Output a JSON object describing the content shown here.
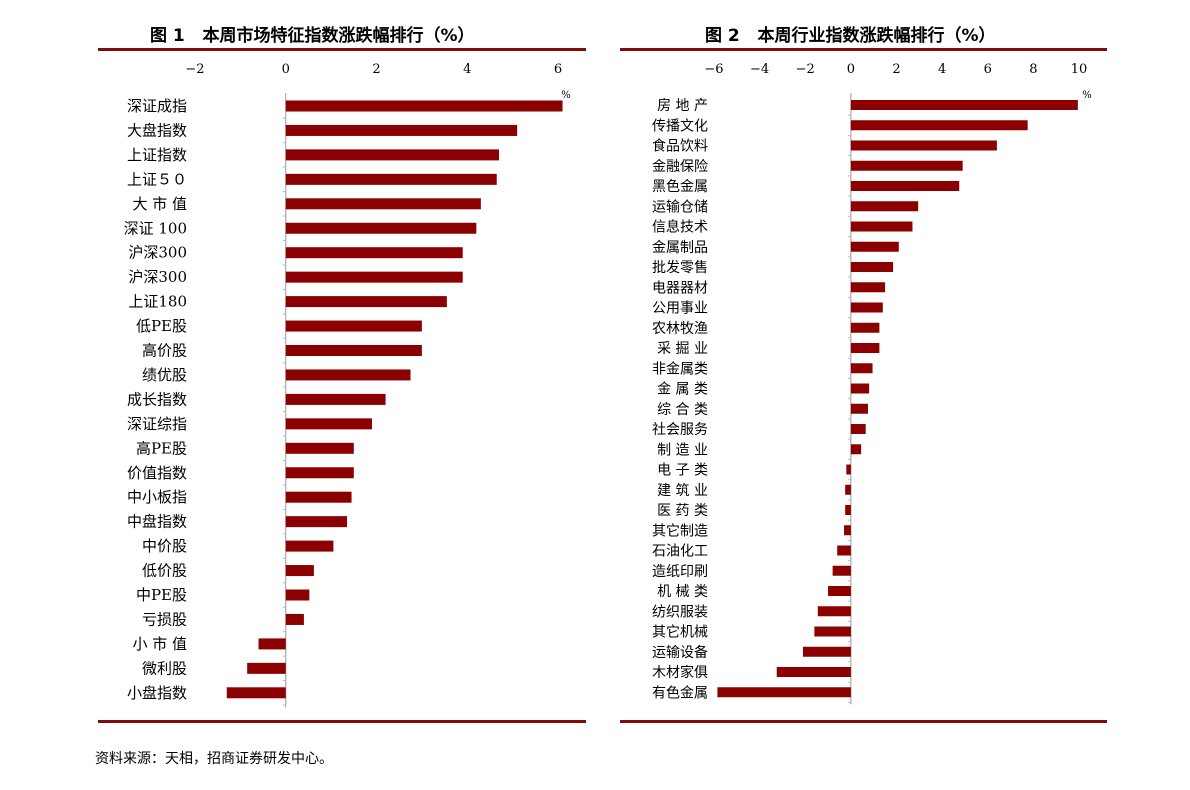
{
  "source_note": "资料来源：天相，招商证券研发中心。",
  "bar_color": "#8b0000",
  "rule_color": "#7f0c0c",
  "chart_data": [
    {
      "type": "bar",
      "orientation": "horizontal",
      "fig_label": "图 1",
      "title": "本周市场特征指数涨跌幅排行（%）",
      "unit": "%",
      "xlim": [
        -2,
        6
      ],
      "xticks": [
        -2,
        0,
        2,
        4,
        6
      ],
      "tick_labels": [
        "−2",
        "0",
        "2",
        "4",
        "6"
      ],
      "categories": [
        "深证成指",
        "大盘指数",
        "上证指数",
        "上证５０",
        "大 市 值",
        "深证 100",
        "沪深300",
        "沪深300",
        "上证180",
        "低PE股",
        "高价股",
        "绩优股",
        "成长指数",
        "深证综指",
        "高PE股",
        "价值指数",
        "中小板指",
        "中盘指数",
        "中价股",
        "低价股",
        "中PE股",
        "亏损股",
        "小 市 值",
        "微利股",
        "小盘指数"
      ],
      "values": [
        6.1,
        5.1,
        4.7,
        4.65,
        4.3,
        4.2,
        3.9,
        3.9,
        3.55,
        3.0,
        3.0,
        2.75,
        2.2,
        1.9,
        1.5,
        1.5,
        1.45,
        1.35,
        1.05,
        0.62,
        0.52,
        0.4,
        -0.6,
        -0.85,
        -1.3
      ]
    },
    {
      "type": "bar",
      "orientation": "horizontal",
      "fig_label": "图 2",
      "title": "本周行业指数涨跌幅排行（%）",
      "unit": "%",
      "xlim": [
        -6,
        10
      ],
      "xticks": [
        -6,
        -4,
        -2,
        0,
        2,
        4,
        6,
        8,
        10
      ],
      "tick_labels": [
        "−6",
        "−4",
        "−2",
        "0",
        "2",
        "4",
        "6",
        "8",
        "10"
      ],
      "categories": [
        "房 地 产",
        "传播文化",
        "食品饮料",
        "金融保险",
        "黑色金属",
        "运输仓储",
        "信息技术",
        "金属制品",
        "批发零售",
        "电器器材",
        "公用事业",
        "农林牧渔",
        "采 掘 业",
        "非金属类",
        "金 属 类",
        "综 合 类",
        "社会服务",
        "制 造 业",
        "电 子 类",
        "建 筑 业",
        "医 药 类",
        "其它制造",
        "石油化工",
        "造纸印刷",
        "机 械 类",
        "纺织服装",
        "其它机械",
        "运输设备",
        "木材家俱",
        "有色金属"
      ],
      "values": [
        9.95,
        7.75,
        6.4,
        4.9,
        4.75,
        2.95,
        2.7,
        2.1,
        1.85,
        1.5,
        1.4,
        1.25,
        1.25,
        0.95,
        0.8,
        0.75,
        0.65,
        0.45,
        -0.2,
        -0.25,
        -0.25,
        -0.3,
        -0.6,
        -0.8,
        -1.0,
        -1.45,
        -1.6,
        -2.1,
        -3.25,
        -5.85
      ]
    }
  ]
}
